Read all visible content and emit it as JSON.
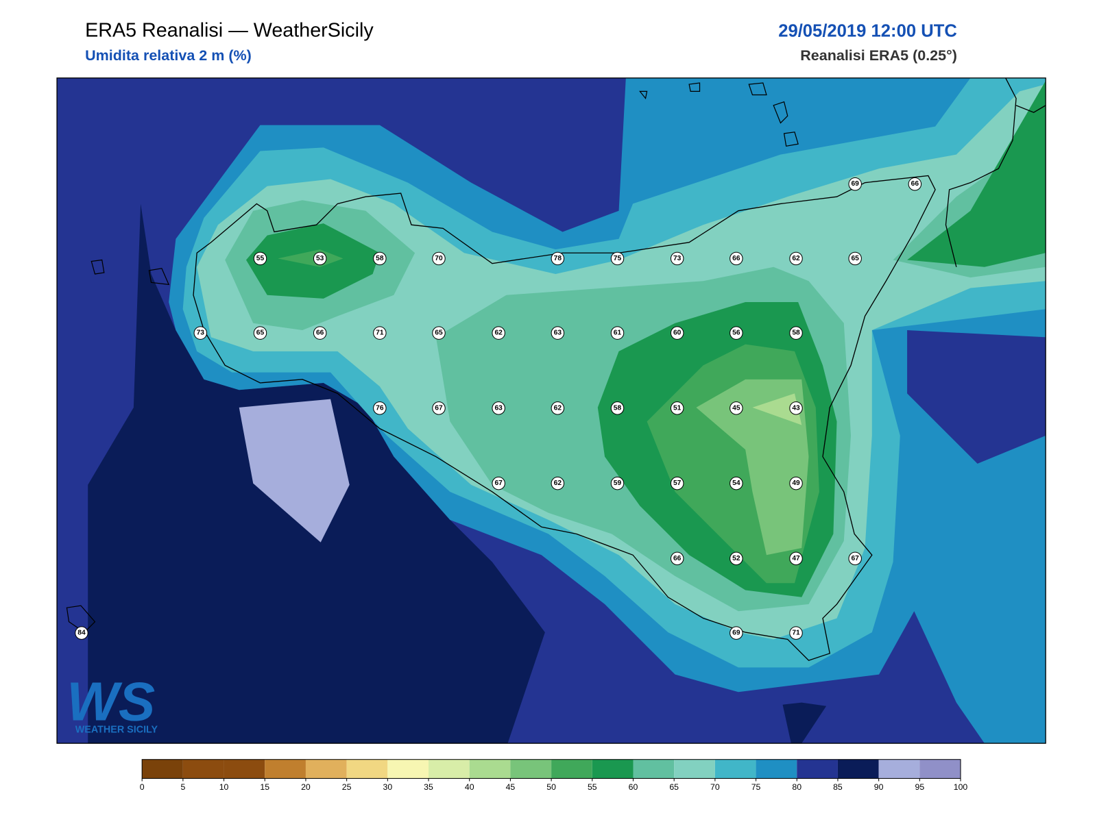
{
  "header": {
    "title": "ERA5 Reanalisi — WeatherSicily",
    "subtitle": "Umidita relativa 2 m (%)",
    "date": "29/05/2019 12:00 UTC",
    "source": "Reanalisi ERA5 (0.25°)"
  },
  "stations": [
    69,
    66,
    55,
    53,
    58,
    70,
    78,
    75,
    73,
    66,
    62,
    65,
    73,
    65,
    66,
    71,
    65,
    62,
    63,
    61,
    60,
    56,
    58,
    76,
    67,
    63,
    62,
    58,
    51,
    45,
    43,
    67,
    62,
    59,
    57,
    54,
    49,
    66,
    52,
    47,
    67,
    84,
    69,
    71
  ],
  "colorbar": {
    "ticks": [
      0,
      5,
      10,
      15,
      20,
      25,
      30,
      35,
      40,
      45,
      50,
      55,
      60,
      65,
      70,
      75,
      80,
      85,
      90,
      95,
      100
    ],
    "colors": [
      "#7a420a",
      "#8c4c0f",
      "#8c4c0f",
      "#c07f2e",
      "#e1b05c",
      "#f1d782",
      "#f7f6b2",
      "#d8eda8",
      "#aadb90",
      "#78c47a",
      "#40a85a",
      "#1a9850",
      "#61c0a0",
      "#82d1c0",
      "#41b6c8",
      "#1f8fc3",
      "#243492",
      "#0a1c58",
      "#a6aedc",
      "#9090c8"
    ]
  },
  "logo": {
    "mark": "WS",
    "text": "WEATHER SICILY"
  }
}
